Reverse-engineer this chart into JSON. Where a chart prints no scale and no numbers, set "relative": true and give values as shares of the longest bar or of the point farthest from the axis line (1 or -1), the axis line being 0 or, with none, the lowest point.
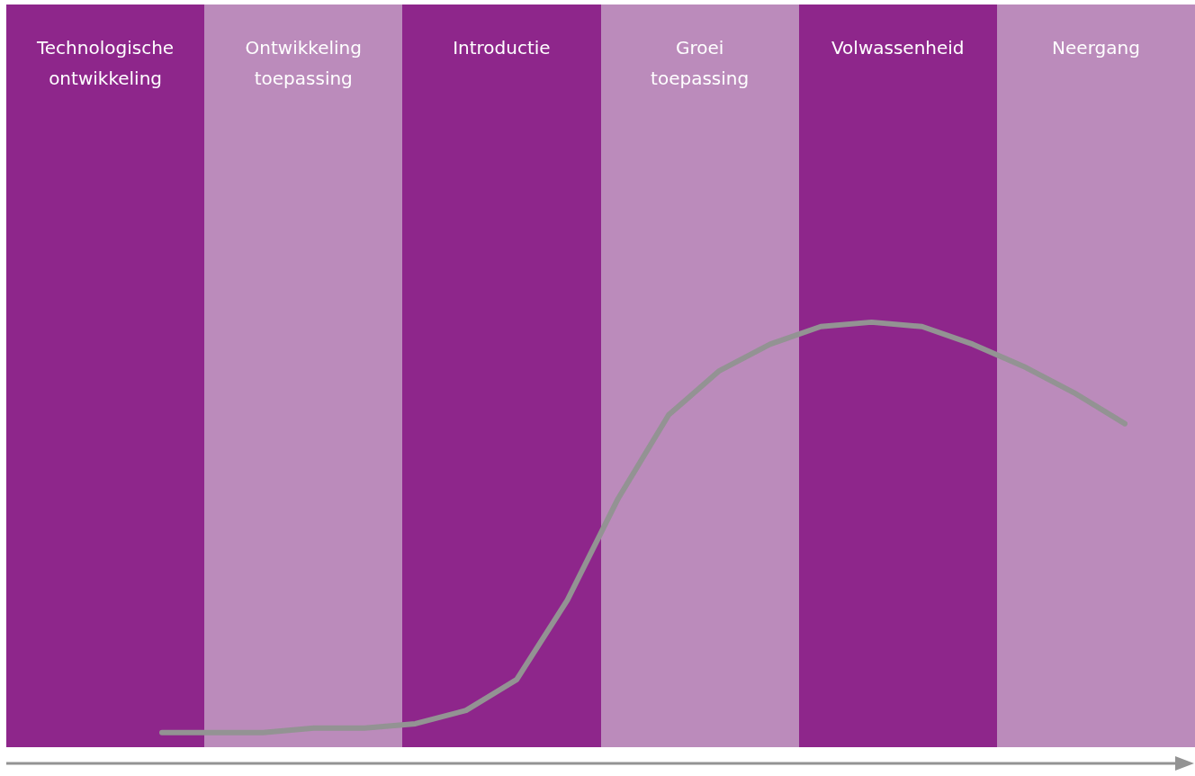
{
  "chart_data": {
    "type": "line",
    "relative": true,
    "categories": [
      null,
      null,
      null,
      null,
      null,
      null,
      null,
      null,
      null,
      null,
      null,
      null,
      null,
      null,
      null,
      null,
      null,
      null,
      null,
      null
    ],
    "annotations": [
      "Technologische ontwikkeling",
      "Ontwikkeling toepassing",
      "Introductie",
      "Groei toepassing",
      "Volwassenheid",
      "Neergang"
    ],
    "series": [
      {
        "color": "#939393",
        "values": [
          0.07,
          0.07,
          0.07,
          0.08,
          0.08,
          0.09,
          0.12,
          0.19,
          0.37,
          0.6,
          0.79,
          0.89,
          0.95,
          0.99,
          1,
          0.99,
          0.95,
          0.9,
          0.84,
          0.77
        ]
      }
    ]
  }
}
